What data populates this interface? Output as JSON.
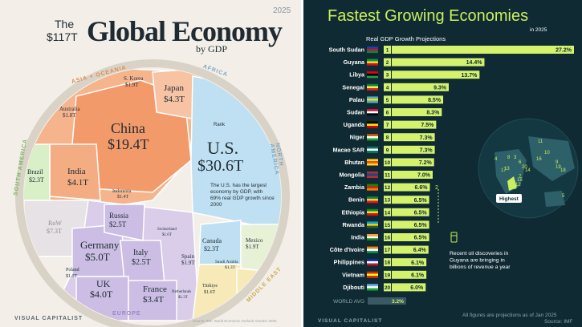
{
  "left": {
    "year": "2025",
    "title_prefix": "The",
    "title_amount": "$117T",
    "title_main": "Global Economy",
    "title_sub": "by GDP",
    "regions": {
      "asia_oceania": "ASIA + OCEANIA",
      "africa": "AFRICA",
      "north_america": "NORTH AMERICA",
      "south_america": "SOUTH AMERICA",
      "europe": "EUROPE",
      "middle_east": "MIDDLE EAST"
    },
    "countries": {
      "china": {
        "name": "China",
        "value": "$19.4T"
      },
      "us": {
        "name": "U.S.",
        "value": "$30.6T"
      },
      "japan": {
        "name": "Japan",
        "value": "$4.3T"
      },
      "india": {
        "name": "India",
        "value": "$4.1T"
      },
      "germany": {
        "name": "Germany",
        "value": "$5.0T"
      },
      "uk": {
        "name": "UK",
        "value": "$4.0T"
      },
      "france": {
        "name": "France",
        "value": "$3.4T"
      },
      "italy": {
        "name": "Italy",
        "value": "$2.5T"
      },
      "russia": {
        "name": "Russia",
        "value": "$2.5T"
      },
      "canada": {
        "name": "Canada",
        "value": "$2.3T"
      },
      "brazil": {
        "name": "Brazil",
        "value": "$2.3T"
      },
      "australia": {
        "name": "Australia",
        "value": "$1.8T"
      },
      "skorea": {
        "name": "S. Korea",
        "value": "$1.9T"
      },
      "mexico": {
        "name": "Mexico",
        "value": "$1.9T"
      },
      "spain": {
        "name": "Spain",
        "value": "$1.9T"
      },
      "indonesia": {
        "name": "Indonesia",
        "value": "$1.4T"
      },
      "row": {
        "name": "RoW",
        "value": "$7.3T"
      },
      "turkiye": {
        "name": "Türkiye",
        "value": "$1.6T"
      },
      "saudi": {
        "name": "Saudi Arabia",
        "value": "$1.3T"
      },
      "netherlands": {
        "name": "Netherlands",
        "value": "$1.3T"
      },
      "switzerland": {
        "name": "Switzerland",
        "value": "$1.0T"
      },
      "poland": {
        "name": "Poland",
        "value": "$1.0T"
      }
    },
    "us_note": "The U.S. has the largest economy by GDP, with 69% real GDP growth since 2000",
    "us_rank": "Rank",
    "brand": "VISUAL CAPITALIST",
    "source": "Source: IMF, World Economic Outlook October 2025"
  },
  "right": {
    "title": "Fastest Growing Economies",
    "year": "in 2025",
    "subtitle": "Real GDP Growth Projections",
    "annotation": "Recent oil discoveries in Guyana are bringing in billions of revenue a year",
    "map_highest": "Highest",
    "map_numbers": [
      "1",
      "2",
      "3",
      "4",
      "5",
      "6",
      "7",
      "8",
      "9",
      "10",
      "11",
      "12",
      "13",
      "14",
      "15",
      "16",
      "17",
      "18",
      "19",
      "20"
    ],
    "footer_note": "All figures are projections as of Jan 2025",
    "source": "Source: IMF",
    "brand": "VISUAL CAPITALIST",
    "colors": {
      "bar": "#d4f26b",
      "bar_text": "#0f2a33",
      "accent": "#c9ef5e"
    }
  },
  "chart_data": {
    "type": "bar",
    "orientation": "horizontal",
    "title": "Fastest Growing Economies",
    "subtitle": "Real GDP Growth Projections",
    "categories": [
      "South Sudan",
      "Guyana",
      "Libya",
      "Senegal",
      "Palau",
      "Sudan",
      "Uganda",
      "Niger",
      "Macao SAR",
      "Bhutan",
      "Mongolia",
      "Zambia",
      "Benin",
      "Ethiopia",
      "Rwanda",
      "India",
      "Côte d'Ivoire",
      "Philippines",
      "Vietnam",
      "Djibouti"
    ],
    "ranks": [
      "1",
      "2",
      "3",
      "4",
      "5",
      "6",
      "7",
      "8",
      "9",
      "10",
      "11",
      "12",
      "13",
      "14",
      "15",
      "16",
      "17",
      "18",
      "19",
      "20"
    ],
    "values": [
      27.2,
      14.4,
      13.7,
      9.3,
      8.5,
      8.3,
      7.5,
      7.3,
      7.3,
      7.2,
      7.0,
      6.6,
      6.5,
      6.5,
      6.5,
      6.5,
      6.4,
      6.1,
      6.1,
      6.0
    ],
    "labels": [
      "27.2%",
      "14.4%",
      "13.7%",
      "9.3%",
      "8.5%",
      "8.3%",
      "7.5%",
      "7.3%",
      "7.3%",
      "7.2%",
      "7.0%",
      "6.6%",
      "6.5%",
      "6.5%",
      "6.5%",
      "6.5%",
      "6.4%",
      "6.1%",
      "6.1%",
      "6.0%"
    ],
    "reference": {
      "label": "WORLD AVG",
      "value": 3.2,
      "text": "3.2%"
    },
    "xlim": [
      0,
      27.2
    ]
  }
}
